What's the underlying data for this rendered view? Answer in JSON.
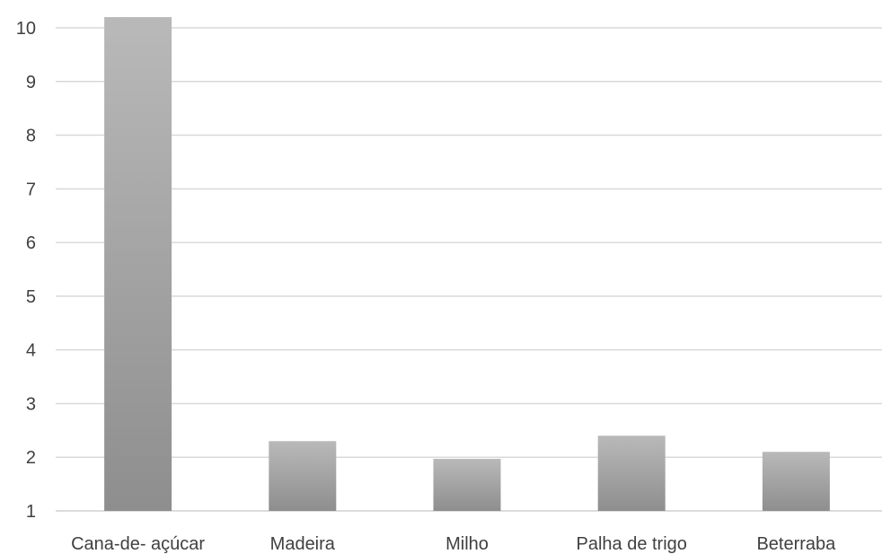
{
  "chart_data": {
    "type": "bar",
    "categories": [
      "Cana-de- açúcar",
      "Madeira",
      "Milho",
      "Palha de trigo",
      "Beterraba"
    ],
    "values": [
      10.2,
      2.3,
      1.97,
      2.4,
      2.1
    ],
    "ylim": [
      1,
      10
    ],
    "yticks": [
      "1",
      "2",
      "3",
      "4",
      "5",
      "6",
      "7",
      "8",
      "9",
      "10"
    ],
    "grid": true,
    "legend": "none",
    "bar_gradient": [
      "#b9b9b9",
      "#8e8e8e"
    ]
  }
}
